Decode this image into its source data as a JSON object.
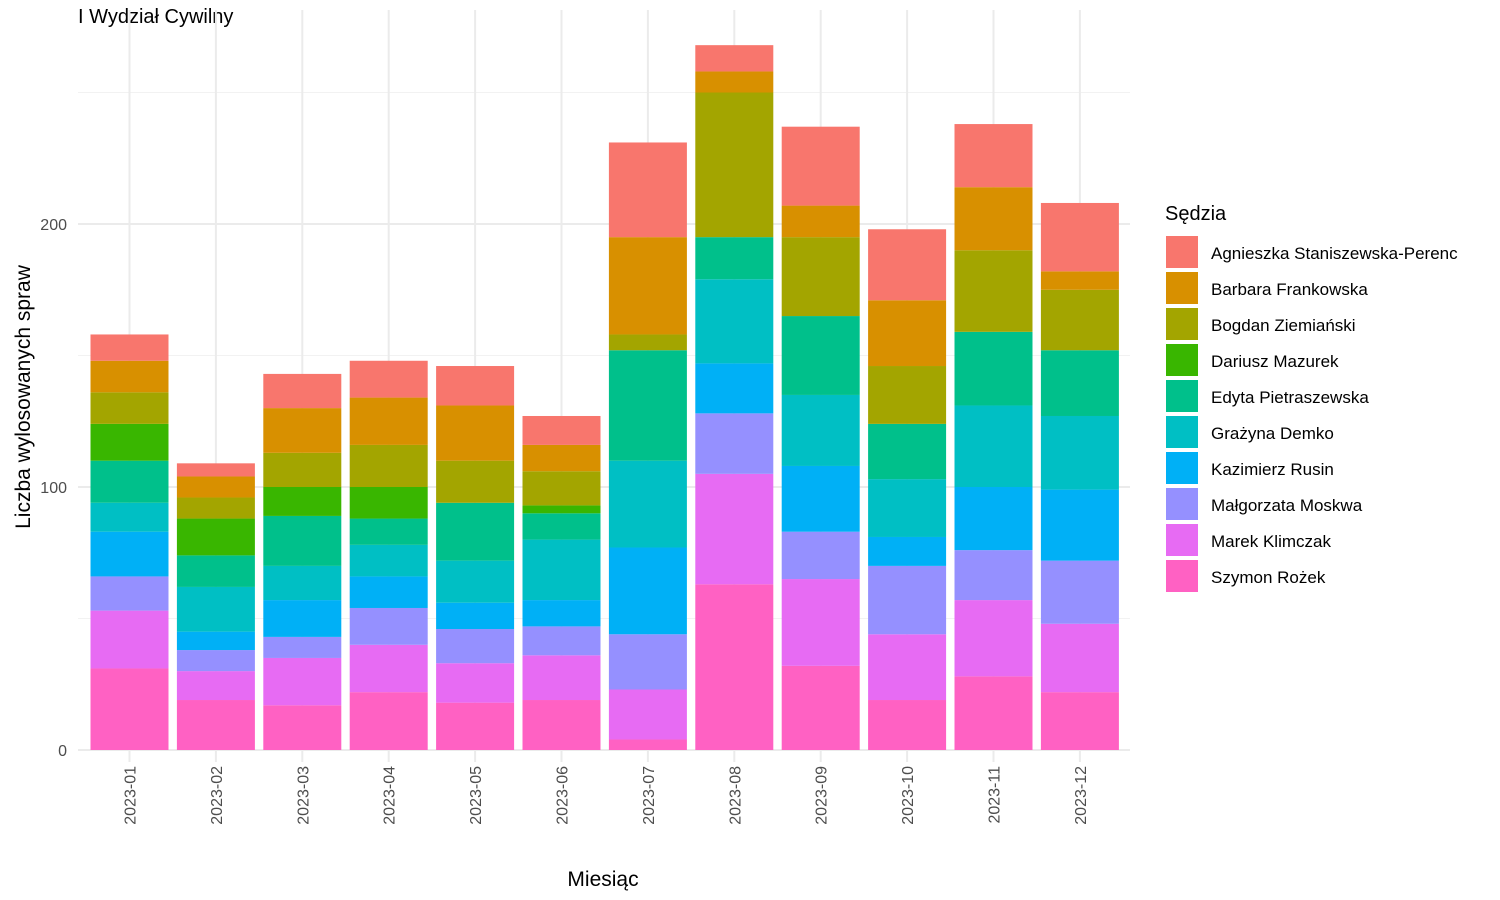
{
  "chart_data": {
    "type": "bar",
    "stacked": true,
    "title": "I Wydział Cywilny",
    "xlabel": "Miesiąc",
    "ylabel": "Liczba wylosowanych spraw",
    "ylim": [
      0,
      270
    ],
    "yticks": [
      0,
      100,
      200
    ],
    "grid": true,
    "legend_title": "Sędzia",
    "legend_position": "right",
    "categories": [
      "2023-01",
      "2023-02",
      "2023-03",
      "2023-04",
      "2023-05",
      "2023-06",
      "2023-07",
      "2023-08",
      "2023-09",
      "2023-10",
      "2023-11",
      "2023-12"
    ],
    "series": [
      {
        "name": "Szymon Rożek",
        "color": "#FF61C3",
        "values": [
          31,
          19,
          17,
          22,
          18,
          19,
          4,
          63,
          32,
          19,
          28,
          22
        ]
      },
      {
        "name": "Marek Klimczak",
        "color": "#E76BF3",
        "values": [
          22,
          11,
          18,
          18,
          15,
          17,
          19,
          42,
          33,
          25,
          29,
          26
        ]
      },
      {
        "name": "Małgorzata Moskwa",
        "color": "#9590FF",
        "values": [
          13,
          8,
          8,
          14,
          13,
          11,
          21,
          23,
          18,
          26,
          19,
          24
        ]
      },
      {
        "name": "Kazimierz Rusin",
        "color": "#00B0F6",
        "values": [
          17,
          7,
          14,
          12,
          10,
          10,
          33,
          19,
          25,
          11,
          24,
          27
        ]
      },
      {
        "name": "Grażyna Demko",
        "color": "#00BFC4",
        "values": [
          11,
          17,
          13,
          12,
          16,
          23,
          33,
          32,
          27,
          22,
          31,
          28
        ]
      },
      {
        "name": "Edyta Pietraszewska",
        "color": "#00C08B",
        "values": [
          16,
          12,
          19,
          10,
          22,
          10,
          42,
          16,
          30,
          21,
          28,
          25
        ]
      },
      {
        "name": "Dariusz Mazurek",
        "color": "#39B600",
        "values": [
          14,
          14,
          11,
          12,
          0,
          3,
          0,
          0,
          0,
          0,
          0,
          0
        ]
      },
      {
        "name": "Bogdan Ziemiański",
        "color": "#A3A500",
        "values": [
          12,
          8,
          13,
          16,
          16,
          13,
          6,
          55,
          30,
          22,
          31,
          23
        ]
      },
      {
        "name": "Barbara Frankowska",
        "color": "#D89000",
        "values": [
          12,
          8,
          17,
          18,
          21,
          10,
          37,
          8,
          12,
          25,
          24,
          7
        ]
      },
      {
        "name": "Agnieszka Staniszewska-Perenc",
        "color": "#F8766D",
        "values": [
          10,
          5,
          13,
          14,
          15,
          11,
          36,
          10,
          30,
          27,
          24,
          26
        ]
      }
    ]
  }
}
